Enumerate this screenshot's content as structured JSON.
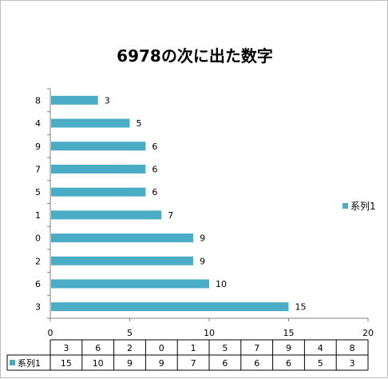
{
  "chart_data": {
    "type": "bar",
    "orientation": "horizontal",
    "title": "6978の次に出た数字",
    "categories": [
      "8",
      "4",
      "9",
      "7",
      "5",
      "1",
      "0",
      "2",
      "6",
      "3"
    ],
    "series": [
      {
        "name": "系列1",
        "values": [
          3,
          5,
          6,
          6,
          6,
          7,
          9,
          9,
          10,
          15
        ]
      }
    ],
    "xlim": [
      0,
      20
    ],
    "xticks": [
      0,
      5,
      10,
      15,
      20
    ],
    "grid": false,
    "legend": "right",
    "data_labels": true,
    "data_table": {
      "header": [
        "3",
        "6",
        "2",
        "0",
        "1",
        "5",
        "7",
        "9",
        "4",
        "8"
      ],
      "rows": [
        {
          "name": "系列1",
          "values": [
            "15",
            "10",
            "9",
            "9",
            "7",
            "6",
            "6",
            "6",
            "5",
            "3"
          ]
        }
      ]
    },
    "colors": {
      "bar": "#4bacc6",
      "axis": "#808080"
    }
  }
}
